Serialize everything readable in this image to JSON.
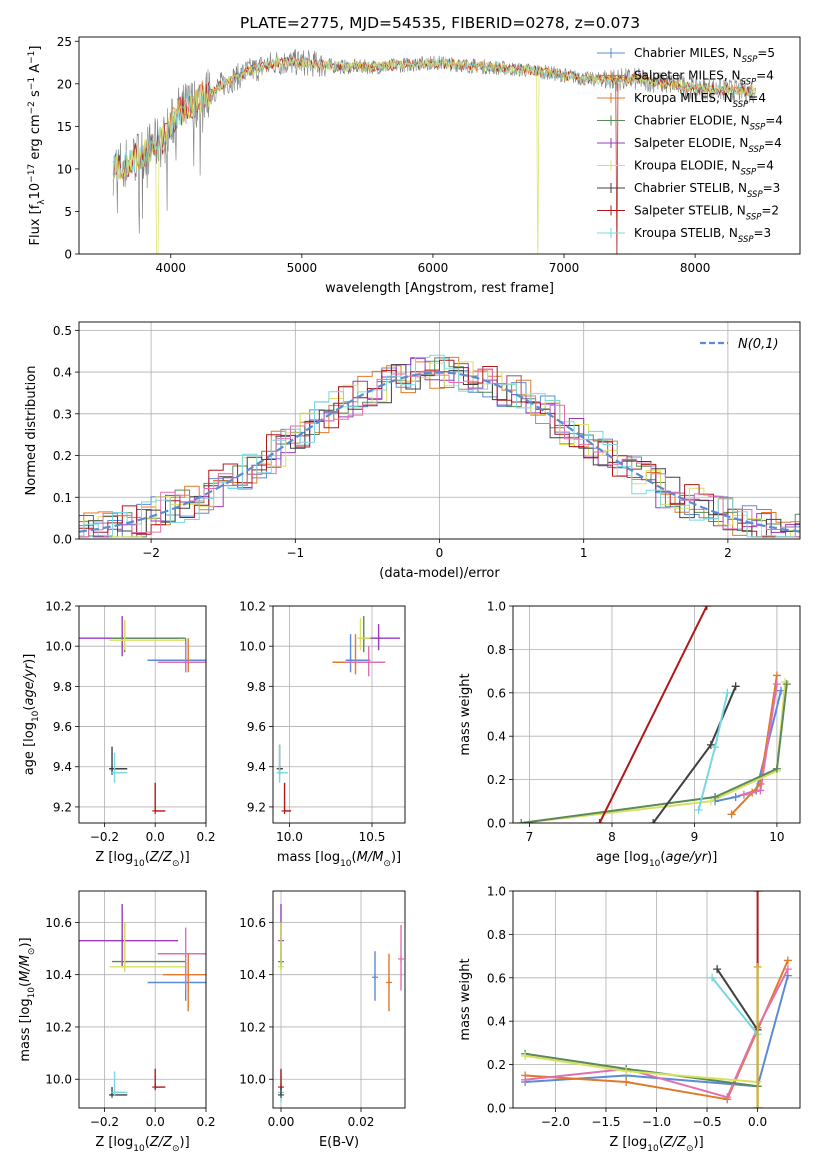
{
  "figure_title": "PLATE=2775, MJD=54535, FIBERID=0278, z=0.073",
  "colors": {
    "c0": "#5b8bd6",
    "c1": "#e07a2a",
    "c2": "#5a8a5a",
    "c3": "#9a3ac0",
    "c4": "#d8e060",
    "c5": "#404040",
    "c6": "#b01818",
    "c7": "#78d8e0",
    "c8": "#e070b0",
    "c9": "#c8b828",
    "grid": "#b0b0b0"
  },
  "legend1": [
    "Chabrier MILES, N_SSP=5",
    "Salpeter MILES, N_SSP=4",
    "Kroupa MILES, N_SSP=4",
    "Chabrier ELODIE, N_SSP=4",
    "Salpeter ELODIE, N_SSP=4",
    "Kroupa ELODIE, N_SSP=4",
    "Chabrier STELIB, N_SSP=3",
    "Salpeter STELIB, N_SSP=2",
    "Kroupa STELIB, N_SSP=3"
  ],
  "legend2": "N(0,1)",
  "chart_data": [
    {
      "type": "line",
      "title": "PLATE=2775, MJD=54535, FIBERID=0278, z=0.073",
      "xlabel": "wavelength [Angstrom, rest frame]",
      "ylabel": "Flux [f_λ10^-17 erg cm^-2 s^-1 A^-1]",
      "xlim": [
        3300,
        8800
      ],
      "ylim": [
        0,
        25.5
      ],
      "xticks": [
        4000,
        5000,
        6000,
        7000,
        8000
      ],
      "yticks": [
        0,
        5,
        10,
        15,
        20,
        25
      ],
      "grid": false,
      "legend": "top-right",
      "continuum_wavelength": [
        3550,
        3700,
        3850,
        3950,
        4050,
        4200,
        4400,
        4600,
        4800,
        5000,
        5300,
        5600,
        6000,
        6400,
        6800,
        7200,
        7600,
        8000,
        8500
      ],
      "continuum_flux": [
        10,
        11,
        12.5,
        13.5,
        16.5,
        18,
        20,
        21.5,
        22.5,
        22.5,
        22,
        22,
        22.5,
        22,
        21.5,
        20.5,
        20.5,
        19.5,
        19
      ],
      "notes": "model spectra overlap the observed spectrum; sharp drops near 3900, 6800 and 7400 A"
    },
    {
      "type": "bar",
      "subtype": "step-histogram",
      "xlabel": "(data-model)/error",
      "ylabel": "Normed distribution",
      "xlim": [
        -2.5,
        2.5
      ],
      "ylim": [
        0,
        0.52
      ],
      "xticks": [
        -2,
        -1,
        0,
        1,
        2
      ],
      "yticks": [
        0.0,
        0.1,
        0.2,
        0.3,
        0.4,
        0.5
      ],
      "grid": true,
      "legend": "top-right",
      "series": [
        {
          "name": "N(0,1)",
          "type": "gaussian",
          "mean": 0,
          "sigma": 1
        }
      ],
      "histogram_bin_width": 0.1
    },
    {
      "type": "scatter",
      "xlabel": "Z [log10(Z/Z☉)]",
      "ylabel": "age  [log10(age/yr)]",
      "xlim": [
        -0.3,
        0.2
      ],
      "ylim": [
        9.12,
        10.2
      ],
      "xticks": [
        -0.2,
        0.0,
        0.2
      ],
      "yticks": [
        9.2,
        9.4,
        9.6,
        9.8,
        10.0,
        10.2
      ],
      "grid": true,
      "points": [
        {
          "x": -0.13,
          "y": 10.04,
          "xerr": [
            0.17,
            0.22
          ],
          "yerr": [
            0.09,
            0.11
          ],
          "color": "c3"
        },
        {
          "x": -0.12,
          "y": 10.04,
          "xerr": [
            0.05,
            0.24
          ],
          "yerr": [
            0.07,
            0.08
          ],
          "color": "c2"
        },
        {
          "x": -0.12,
          "y": 10.03,
          "xerr": [
            0.06,
            0.24
          ],
          "yerr": [
            0.05,
            0.1
          ],
          "color": "c4"
        },
        {
          "x": 0.12,
          "y": 9.93,
          "xerr": [
            0.15,
            0.08
          ],
          "yerr": [
            0.06,
            0.11
          ],
          "color": "c0"
        },
        {
          "x": 0.13,
          "y": 9.92,
          "xerr": [
            0.1,
            0.08
          ],
          "yerr": [
            0.05,
            0.12
          ],
          "color": "c1"
        },
        {
          "x": 0.12,
          "y": 9.92,
          "xerr": [
            0.11,
            0.1
          ],
          "yerr": [
            0.05,
            0.09
          ],
          "color": "c8"
        },
        {
          "x": -0.17,
          "y": 9.39,
          "xerr": [
            0.01,
            0.06
          ],
          "yerr": [
            0.03,
            0.11
          ],
          "color": "c5"
        },
        {
          "x": -0.16,
          "y": 9.37,
          "xerr": [
            0.0,
            0.05
          ],
          "yerr": [
            0.05,
            0.1
          ],
          "color": "c7"
        },
        {
          "x": 0.0,
          "y": 9.18,
          "xerr": [
            0.0,
            0.04
          ],
          "yerr": [
            0.0,
            0.14
          ],
          "color": "c6"
        }
      ]
    },
    {
      "type": "scatter",
      "xlabel": "mass [log10(M/M☉)]",
      "ylabel": "",
      "xlim": [
        9.9,
        10.7
      ],
      "ylim": [
        9.12,
        10.2
      ],
      "xticks": [
        10.0,
        10.5
      ],
      "yticks": [
        9.2,
        9.4,
        9.6,
        9.8,
        10.0,
        10.2
      ],
      "grid": true,
      "points": [
        {
          "x": 10.54,
          "y": 10.04,
          "xerr": [
            0.1,
            0.13
          ],
          "yerr": [
            0.06,
            0.07
          ],
          "color": "c3"
        },
        {
          "x": 10.45,
          "y": 10.04,
          "xerr": [
            0.02,
            0.05
          ],
          "yerr": [
            0.07,
            0.11
          ],
          "color": "c2"
        },
        {
          "x": 10.43,
          "y": 10.04,
          "xerr": [
            0.01,
            0.06
          ],
          "yerr": [
            0.06,
            0.1
          ],
          "color": "c4"
        },
        {
          "x": 10.37,
          "y": 9.93,
          "xerr": [
            0.03,
            0.12
          ],
          "yerr": [
            0.06,
            0.13
          ],
          "color": "c0"
        },
        {
          "x": 10.4,
          "y": 9.92,
          "xerr": [
            0.14,
            0.09
          ],
          "yerr": [
            0.06,
            0.14
          ],
          "color": "c1"
        },
        {
          "x": 10.48,
          "y": 9.92,
          "xerr": [
            0.14,
            0.1
          ],
          "yerr": [
            0.07,
            0.08
          ],
          "color": "c8"
        },
        {
          "x": 9.94,
          "y": 9.39,
          "xerr": [
            0.0,
            0.02
          ],
          "yerr": [
            0.03,
            0.12
          ],
          "color": "c5"
        },
        {
          "x": 9.94,
          "y": 9.37,
          "xerr": [
            0.0,
            0.05
          ],
          "yerr": [
            0.05,
            0.14
          ],
          "color": "c7"
        },
        {
          "x": 9.97,
          "y": 9.18,
          "xerr": [
            0.0,
            0.04
          ],
          "yerr": [
            0.0,
            0.14
          ],
          "color": "c6"
        }
      ]
    },
    {
      "type": "line",
      "xlabel": "age  [log10(age/yr)]",
      "ylabel": "mass weight",
      "xlim": [
        6.8,
        10.28
      ],
      "ylim": [
        0,
        1.0
      ],
      "xticks": [
        7,
        8,
        9,
        10
      ],
      "yticks": [
        0.0,
        0.2,
        0.4,
        0.6,
        0.8,
        1.0
      ],
      "grid": true,
      "series": [
        {
          "color": "c0",
          "x": [
            9.25,
            9.5,
            9.75,
            10.05
          ],
          "y": [
            0.1,
            0.12,
            0.15,
            0.61
          ]
        },
        {
          "color": "c1",
          "x": [
            9.45,
            9.7,
            9.8,
            10.0
          ],
          "y": [
            0.04,
            0.14,
            0.18,
            0.68
          ]
        },
        {
          "color": "c8",
          "x": [
            9.6,
            9.8,
            10.0
          ],
          "y": [
            0.13,
            0.15,
            0.64
          ]
        },
        {
          "color": "c4",
          "x": [
            6.9,
            9.2,
            10.0,
            10.1
          ],
          "y": [
            0.0,
            0.1,
            0.24,
            0.65
          ]
        },
        {
          "color": "c2",
          "x": [
            6.9,
            9.25,
            10.0,
            10.12
          ],
          "y": [
            0.0,
            0.12,
            0.25,
            0.64
          ]
        },
        {
          "color": "c6",
          "x": [
            7.85,
            9.15
          ],
          "y": [
            0.0,
            1.0
          ]
        },
        {
          "color": "c5",
          "x": [
            8.5,
            9.2,
            9.5
          ],
          "y": [
            0.0,
            0.36,
            0.63
          ]
        },
        {
          "color": "c7",
          "x": [
            9.05,
            9.25,
            9.4
          ],
          "y": [
            0.06,
            0.35,
            0.6
          ]
        }
      ]
    },
    {
      "type": "scatter",
      "xlabel": "Z [log10(Z/Z☉)]",
      "ylabel": "mass [log10(M/M☉)]",
      "xlim": [
        -0.3,
        0.2
      ],
      "ylim": [
        9.89,
        10.72
      ],
      "xticks": [
        -0.2,
        0.0,
        0.2
      ],
      "yticks": [
        10.0,
        10.2,
        10.4,
        10.6
      ],
      "grid": true,
      "points": [
        {
          "x": -0.13,
          "y": 10.53,
          "xerr": [
            0.17,
            0.22
          ],
          "yerr": [
            0.1,
            0.14
          ],
          "color": "c3"
        },
        {
          "x": -0.12,
          "y": 10.45,
          "xerr": [
            0.05,
            0.24
          ],
          "yerr": [
            0.03,
            0.15
          ],
          "color": "c2"
        },
        {
          "x": -0.12,
          "y": 10.43,
          "xerr": [
            0.06,
            0.24
          ],
          "yerr": [
            0.02,
            0.17
          ],
          "color": "c4"
        },
        {
          "x": 0.12,
          "y": 10.37,
          "xerr": [
            0.15,
            0.08
          ],
          "yerr": [
            0.07,
            0.08
          ],
          "color": "c0"
        },
        {
          "x": 0.13,
          "y": 10.4,
          "xerr": [
            0.1,
            0.08
          ],
          "yerr": [
            0.14,
            0.08
          ],
          "color": "c1"
        },
        {
          "x": 0.12,
          "y": 10.48,
          "xerr": [
            0.11,
            0.1
          ],
          "yerr": [
            0.14,
            0.1
          ],
          "color": "c8"
        },
        {
          "x": -0.17,
          "y": 9.94,
          "xerr": [
            0.01,
            0.06
          ],
          "yerr": [
            0.0,
            0.03
          ],
          "color": "c5"
        },
        {
          "x": -0.16,
          "y": 9.95,
          "xerr": [
            0.0,
            0.05
          ],
          "yerr": [
            0.01,
            0.08
          ],
          "color": "c7"
        },
        {
          "x": 0.0,
          "y": 9.97,
          "xerr": [
            0.0,
            0.04
          ],
          "yerr": [
            0.01,
            0.07
          ],
          "color": "c6"
        }
      ]
    },
    {
      "type": "scatter",
      "xlabel": "E(B-V)",
      "ylabel": "",
      "xlim": [
        -0.002,
        0.031
      ],
      "ylim": [
        9.89,
        10.72
      ],
      "xticks": [
        0.0,
        0.02
      ],
      "yticks": [
        10.0,
        10.2,
        10.4,
        10.6
      ],
      "grid": true,
      "points": [
        {
          "x": 0.0,
          "y": 10.53,
          "xerr": [
            0,
            0
          ],
          "yerr": [
            0.1,
            0.14
          ],
          "color": "c3"
        },
        {
          "x": 0.0,
          "y": 10.45,
          "xerr": [
            0,
            0
          ],
          "yerr": [
            0.03,
            0.15
          ],
          "color": "c2"
        },
        {
          "x": 0.0,
          "y": 10.43,
          "xerr": [
            0,
            0
          ],
          "yerr": [
            0.02,
            0.17
          ],
          "color": "c4"
        },
        {
          "x": 0.0,
          "y": 9.95,
          "xerr": [
            0,
            0
          ],
          "yerr": [
            0.04,
            0.08
          ],
          "color": "c7"
        },
        {
          "x": 0.0,
          "y": 9.97,
          "xerr": [
            0,
            0
          ],
          "yerr": [
            0.01,
            0.07
          ],
          "color": "c6"
        },
        {
          "x": 0.0,
          "y": 9.94,
          "xerr": [
            0,
            0
          ],
          "yerr": [
            0.0,
            0.03
          ],
          "color": "c5"
        },
        {
          "x": 0.0235,
          "y": 10.39,
          "xerr": [
            0,
            0
          ],
          "yerr": [
            0.09,
            0.1
          ],
          "color": "c0"
        },
        {
          "x": 0.027,
          "y": 10.37,
          "xerr": [
            0,
            0
          ],
          "yerr": [
            0.11,
            0.11
          ],
          "color": "c1"
        },
        {
          "x": 0.03,
          "y": 10.46,
          "xerr": [
            0,
            0
          ],
          "yerr": [
            0.12,
            0.13
          ],
          "color": "c8"
        }
      ]
    },
    {
      "type": "line",
      "xlabel": "Z [log10(Z/Z☉)]",
      "ylabel": "mass weight",
      "xlim": [
        -2.42,
        0.42
      ],
      "ylim": [
        0,
        1.0
      ],
      "xticks": [
        -2.0,
        -1.5,
        -1.0,
        -0.5,
        0.0
      ],
      "yticks": [
        0.0,
        0.2,
        0.4,
        0.6,
        0.8,
        1.0
      ],
      "grid": true,
      "series": [
        {
          "color": "c0",
          "x": [
            -2.3,
            -1.3,
            0.0,
            0.3
          ],
          "y": [
            0.12,
            0.15,
            0.1,
            0.61
          ]
        },
        {
          "color": "c1",
          "x": [
            -2.3,
            -1.3,
            -0.3,
            0.0,
            0.3
          ],
          "y": [
            0.15,
            0.12,
            0.04,
            0.36,
            0.68
          ]
        },
        {
          "color": "c8",
          "x": [
            -2.3,
            -1.3,
            -0.3,
            0.0,
            0.3
          ],
          "y": [
            0.13,
            0.18,
            0.05,
            0.37,
            0.64
          ]
        },
        {
          "color": "c2",
          "x": [
            -2.3,
            -1.3,
            0.0
          ],
          "y": [
            0.25,
            0.18,
            0.1
          ]
        },
        {
          "color": "c4",
          "x": [
            -2.3,
            -1.3,
            0.0
          ],
          "y": [
            0.24,
            0.17,
            0.12
          ]
        },
        {
          "color": "c5",
          "x": [
            -0.4,
            0.0
          ],
          "y": [
            0.64,
            0.36
          ]
        },
        {
          "color": "c7",
          "x": [
            -0.45,
            0.0
          ],
          "y": [
            0.6,
            0.34
          ]
        },
        {
          "color": "c6",
          "x": [
            0.0,
            0.0
          ],
          "y": [
            0.0,
            1.0
          ]
        },
        {
          "color": "c9",
          "x": [
            0.0,
            0.0
          ],
          "y": [
            0.65,
            0.0
          ]
        }
      ]
    }
  ]
}
